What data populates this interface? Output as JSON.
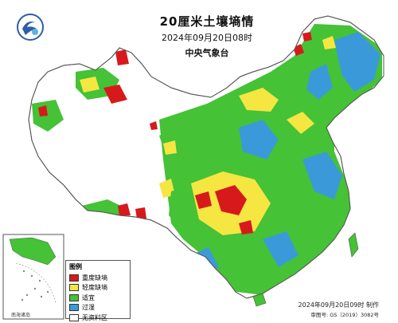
{
  "header": {
    "title": "20厘米土壤墒情",
    "time": "2024年09月20日08时",
    "issuer": "中央气象台"
  },
  "legend": {
    "title": "图例",
    "items": [
      {
        "label": "重度缺墒",
        "color": "#d7191c"
      },
      {
        "label": "轻度缺墒",
        "color": "#f5e642"
      },
      {
        "label": "适宜",
        "color": "#45c236"
      },
      {
        "label": "过湿",
        "color": "#3a9ad9"
      },
      {
        "label": "无资料区",
        "color": "#ffffff"
      }
    ]
  },
  "inset": {
    "caption": "南海诸岛"
  },
  "footer": {
    "produced": "2024年09月20日09时 制作",
    "approval": "审图号: GS（2019）3082号"
  },
  "colors": {
    "sea": "#ffffff",
    "border": "#555555",
    "moist": "#3a9ad9",
    "suitable": "#45c236",
    "light_dry": "#f5e642",
    "heavy_dry": "#d7191c"
  },
  "icons": {
    "logo": "cma-logo-icon"
  }
}
